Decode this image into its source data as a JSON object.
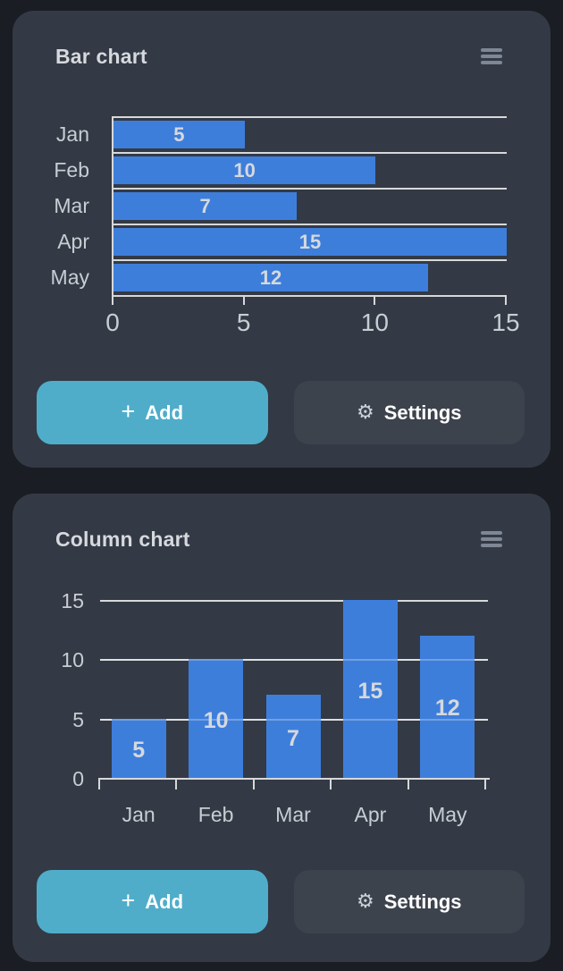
{
  "colors": {
    "page_bg": "#1a1d23",
    "card_bg": "#333a45",
    "bar_blue": "#3e7edb",
    "add_button_teal": "#4fadca",
    "settings_button_gray": "#3d434d",
    "grid_line": "#d7d8d9",
    "axis_text": "#c8cdd3",
    "title_text": "#d6d9dd"
  },
  "cards": [
    {
      "title": "Bar chart",
      "menu_icon": "hamburger-menu",
      "chart_data": {
        "type": "bar",
        "orientation": "horizontal",
        "categories": [
          "Jan",
          "Feb",
          "Mar",
          "Apr",
          "May"
        ],
        "values": [
          5,
          10,
          7,
          15,
          12
        ],
        "value_labels": [
          "5",
          "10",
          "7",
          "15",
          "12"
        ],
        "xlabel": "",
        "ylabel": "",
        "xlim": [
          0,
          15
        ],
        "xticks": [
          "0",
          "5",
          "10",
          "15"
        ],
        "xtick_values": [
          0,
          5,
          10,
          15
        ],
        "grid": true,
        "legend": false,
        "bar_color": "#3e7edb"
      },
      "actions": {
        "add": {
          "icon": "+",
          "label": "Add"
        },
        "settings": {
          "icon": "⚙",
          "label": "Settings"
        }
      }
    },
    {
      "title": "Column chart",
      "menu_icon": "hamburger-menu",
      "chart_data": {
        "type": "bar",
        "orientation": "vertical",
        "categories": [
          "Jan",
          "Feb",
          "Mar",
          "Apr",
          "May"
        ],
        "values": [
          5,
          10,
          7,
          15,
          12
        ],
        "value_labels": [
          "5",
          "10",
          "7",
          "15",
          "12"
        ],
        "xlabel": "",
        "ylabel": "",
        "ylim": [
          0,
          15
        ],
        "yticks": [
          "0",
          "5",
          "10",
          "15"
        ],
        "ytick_values": [
          0,
          5,
          10,
          15
        ],
        "grid": true,
        "legend": false,
        "bar_color": "#3e7edb"
      },
      "actions": {
        "add": {
          "icon": "+",
          "label": "Add"
        },
        "settings": {
          "icon": "⚙",
          "label": "Settings"
        }
      }
    }
  ]
}
